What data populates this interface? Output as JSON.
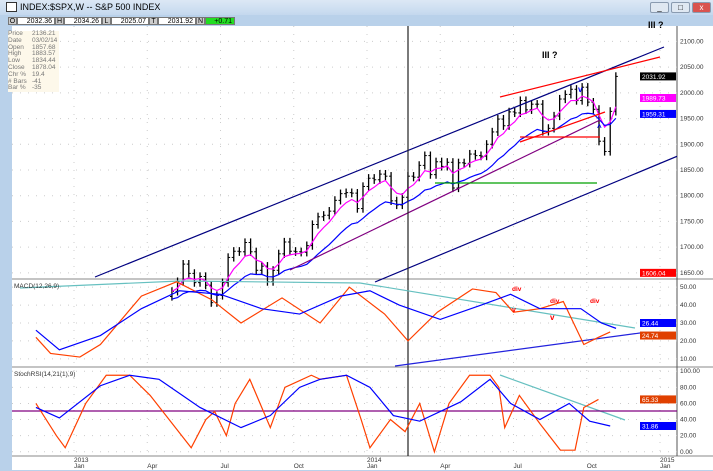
{
  "window": {
    "title": "INDEX:$SPX,W -- S&P 500 INDEX",
    "buttons": [
      "_",
      "□",
      "x"
    ]
  },
  "ohlc_bar": {
    "O": "2032.36",
    "H": "2034.26",
    "L": "2025.07",
    "T": "2031.92",
    "N": "+0.71"
  },
  "data_window": [
    [
      "Price",
      "2136.21"
    ],
    [
      "Date",
      "03/02/14"
    ],
    [
      "Open",
      "1857.68"
    ],
    [
      "High",
      "1883.57"
    ],
    [
      "Low",
      "1834.44"
    ],
    [
      "Close",
      "1878.04"
    ],
    [
      "Chr %",
      "19.4"
    ],
    [
      "# Bars",
      "-41"
    ],
    [
      "Bar %",
      "-35"
    ]
  ],
  "colors": {
    "price": "#000000",
    "ma_fast": "#ff00ff",
    "ma_slow": "#0000ff",
    "channel": "#000080",
    "red": "#ff0000",
    "green": "#00a000",
    "purple": "#800080",
    "macd": "#ff4000",
    "signal": "#0000ff",
    "cyan": "#66c0c0"
  },
  "chart_data": [
    {
      "type": "line",
      "title": "INDEX:$SPX,W",
      "ylim": [
        1640,
        2130
      ],
      "yticks": [
        2100,
        2050,
        2000,
        1950,
        1900,
        1850,
        1800,
        1750,
        1700,
        1650
      ],
      "start_week": "2013-05-03",
      "close": [
        1614,
        1633,
        1667,
        1649,
        1631,
        1643,
        1626,
        1592,
        1606,
        1631,
        1680,
        1692,
        1691,
        1709,
        1691,
        1655,
        1663,
        1633,
        1655,
        1687,
        1710,
        1692,
        1691,
        1690,
        1703,
        1744,
        1759,
        1762,
        1770,
        1791,
        1804,
        1806,
        1805,
        1775,
        1818,
        1834,
        1831,
        1842,
        1838,
        1790,
        1782,
        1797,
        1838,
        1836,
        1859,
        1878,
        1841,
        1866,
        1857,
        1865,
        1815,
        1864,
        1863,
        1881,
        1878,
        1877,
        1900,
        1924,
        1949,
        1936,
        1963,
        1961,
        1985,
        1967,
        1978,
        1978,
        1925,
        1931,
        1955,
        1988,
        1997,
        2007,
        1985,
        2011,
        1982,
        1968,
        1906,
        1886,
        1964,
        2032
      ],
      "value_labels": [
        {
          "text": "2031.92",
          "color": "#000000"
        },
        {
          "text": "1989.73",
          "color": "#ff00ff"
        },
        {
          "text": "1959.31",
          "color": "#0000ff"
        },
        {
          "text": "1606.04",
          "color": "#ff0000"
        }
      ],
      "annotations": [
        "III ?",
        "III ?",
        "v",
        "^"
      ]
    },
    {
      "type": "line",
      "title": "MACD(12,26,9)",
      "ylim": [
        6,
        54
      ],
      "yticks": [
        50,
        40,
        30,
        20,
        10
      ],
      "series": [
        {
          "name": "MACD",
          "x": [
            2012.87,
            2012.92,
            2013.02,
            2013.09,
            2013.23,
            2013.35,
            2013.47,
            2013.57,
            2013.71,
            2013.84,
            2013.94,
            2014.06,
            2014.14,
            2014.24,
            2014.36,
            2014.44,
            2014.5,
            2014.59,
            2014.67,
            2014.74,
            2014.79,
            2014.83
          ],
          "values": [
            22,
            13,
            11,
            18,
            45,
            53,
            43,
            30,
            44,
            30,
            50,
            35,
            20,
            36,
            49,
            47,
            36,
            38,
            42,
            18,
            22,
            25
          ]
        },
        {
          "name": "Signal",
          "x": [
            2012.87,
            2012.95,
            2013.09,
            2013.23,
            2013.36,
            2013.5,
            2013.64,
            2013.77,
            2013.91,
            2014.01,
            2014.11,
            2014.25,
            2014.39,
            2014.49,
            2014.59,
            2014.73,
            2014.8,
            2014.85
          ],
          "values": [
            26,
            15,
            23,
            38,
            48,
            46,
            38,
            35,
            45,
            48,
            40,
            32,
            40,
            46,
            38,
            38,
            30,
            27
          ]
        }
      ],
      "value_labels": [
        {
          "text": "26.44",
          "color": "#0000ff"
        },
        {
          "text": "24.74",
          "color": "#e04000"
        }
      ],
      "annotations": [
        "div",
        "div",
        "div",
        "v",
        "v"
      ]
    },
    {
      "type": "line",
      "title": "StochRSI(14,21(1),9)",
      "ylim": [
        0,
        100
      ],
      "yticks": [
        100,
        80,
        60,
        40,
        20,
        0
      ],
      "series": [
        {
          "name": "StochRSI",
          "x": [
            2012.87,
            2012.94,
            2012.97,
            2013.04,
            2013.11,
            2013.19,
            2013.26,
            2013.4,
            2013.45,
            2013.48,
            2013.52,
            2013.55,
            2013.6,
            2013.67,
            2013.72,
            2013.81,
            2013.84,
            2013.93,
            2013.98,
            2014.01,
            2014.08,
            2014.13,
            2014.18,
            2014.23,
            2014.28,
            2014.35,
            2014.42,
            2014.45,
            2014.47,
            2014.52,
            2014.59,
            2014.66,
            2014.71,
            2014.74,
            2014.79
          ],
          "values": [
            60,
            20,
            5,
            60,
            95,
            95,
            70,
            5,
            40,
            50,
            20,
            60,
            90,
            30,
            80,
            95,
            90,
            95,
            40,
            5,
            40,
            25,
            60,
            0,
            60,
            95,
            95,
            80,
            30,
            70,
            35,
            2,
            2,
            55,
            65
          ]
        },
        {
          "name": "Signal",
          "x": [
            2012.87,
            2012.95,
            2013.09,
            2013.19,
            2013.29,
            2013.43,
            2013.57,
            2013.67,
            2013.77,
            2013.84,
            2013.93,
            2014.01,
            2014.09,
            2014.18,
            2014.32,
            2014.42,
            2014.49,
            2014.59,
            2014.69,
            2014.76,
            2014.83
          ],
          "values": [
            55,
            42,
            82,
            95,
            90,
            55,
            30,
            45,
            80,
            90,
            95,
            80,
            45,
            38,
            62,
            90,
            60,
            40,
            60,
            38,
            32
          ]
        }
      ],
      "value_labels": [
        {
          "text": "65.33",
          "color": "#e04000"
        },
        {
          "text": "31.86",
          "color": "#0000ff"
        }
      ]
    },
    {
      "type": "axis",
      "xticks": [
        {
          "year": "2013",
          "month": "Jan"
        },
        {
          "month": "Apr"
        },
        {
          "month": "Jul"
        },
        {
          "month": "Oct"
        },
        {
          "year": "2014",
          "month": "Jan"
        },
        {
          "month": "Apr"
        },
        {
          "month": "Jul"
        },
        {
          "month": "Oct"
        },
        {
          "year": "2015",
          "month": "Jan"
        }
      ]
    }
  ]
}
